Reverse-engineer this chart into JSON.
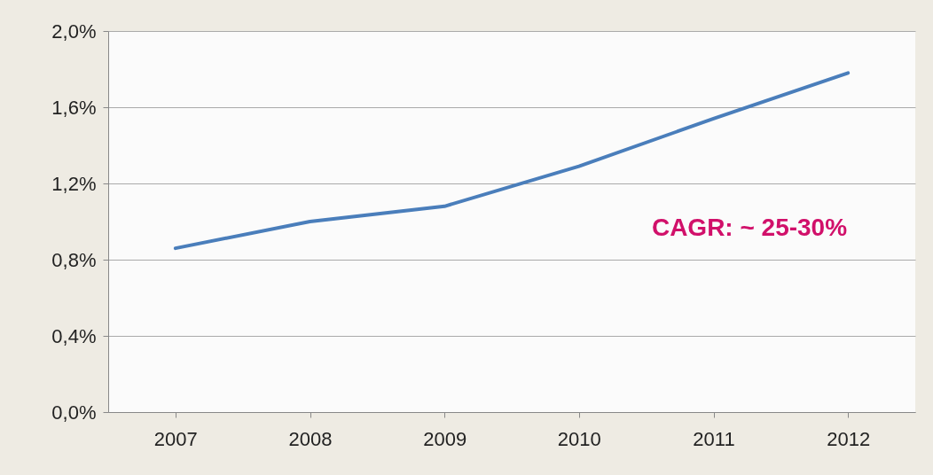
{
  "chart_data": {
    "type": "line",
    "categories": [
      "2007",
      "2008",
      "2009",
      "2010",
      "2011",
      "2012"
    ],
    "series": [
      {
        "color": "#4a7ebb",
        "values": [
          0.86,
          1.0,
          1.08,
          1.29,
          1.54,
          1.78
        ]
      }
    ],
    "ylim": [
      0,
      2
    ],
    "yticks": [
      {
        "value": 0,
        "label": "0,0%"
      },
      {
        "value": 0.4,
        "label": "0,4%"
      },
      {
        "value": 0.8,
        "label": "0,8%"
      },
      {
        "value": 1.2,
        "label": "1,2%"
      },
      {
        "value": 1.6,
        "label": "1,6%"
      },
      {
        "value": 2,
        "label": "2,0%"
      }
    ],
    "grid": "y",
    "legend": false,
    "marker": "none",
    "line_style": "solid",
    "annotations": [
      "CAGR: ~ 25-30%"
    ]
  }
}
